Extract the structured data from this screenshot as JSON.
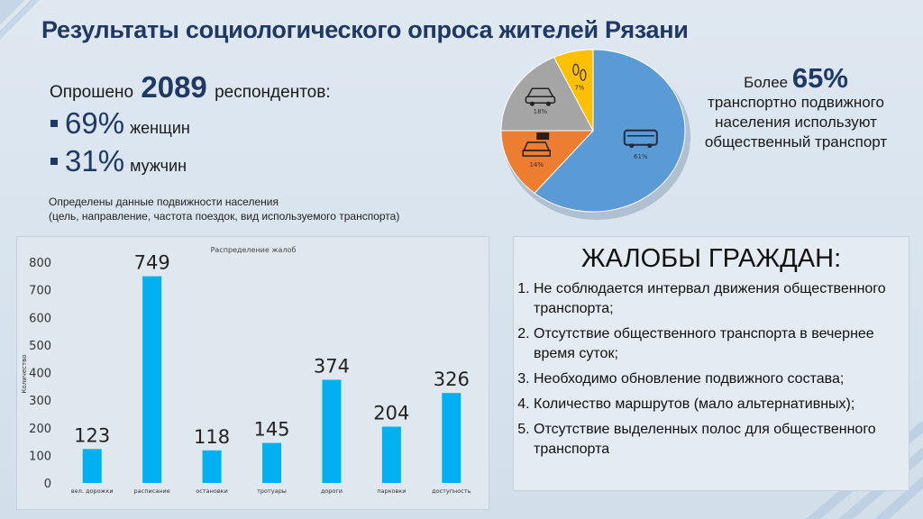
{
  "title": "Результаты социологического опроса жителей Рязани",
  "survey": {
    "prefix": "Опрошено",
    "count": "2089",
    "suffix": "респондентов:",
    "women_pct": "69%",
    "women_label": "женщин",
    "men_pct": "31%",
    "men_label": "мужчин",
    "mobility_line1": "Определены данные подвижности населения",
    "mobility_line2": "(цель, направление, частота поездок, вид используемого транспорта)"
  },
  "transport_share": {
    "prefix": "Более",
    "big": "65%",
    "text": "транспортно подвижного населения используют общественный транспорт",
    "slices": [
      {
        "label": "61%",
        "value": 61,
        "icon": "bus-icon",
        "color": "#5b9bd5"
      },
      {
        "label": "14%",
        "value": 14,
        "icon": "taxi-icon",
        "color": "#ed7d31"
      },
      {
        "label": "18%",
        "value": 18,
        "icon": "car-icon",
        "color": "#a5a5a5"
      },
      {
        "label": "7%",
        "value": 7,
        "icon": "footprints-icon",
        "color": "#ffc000"
      }
    ]
  },
  "chart_data": {
    "type": "bar",
    "title": "Распределение жалоб",
    "ylabel": "Количество",
    "xlabel": "",
    "ylim": [
      0,
      800
    ],
    "yticks": [
      0,
      100,
      200,
      300,
      400,
      500,
      600,
      700,
      800
    ],
    "categories": [
      "вел. дорожки",
      "расписание",
      "остановки",
      "тротуары",
      "дороги",
      "парковки",
      "доступность"
    ],
    "values": [
      123,
      749,
      118,
      145,
      374,
      204,
      326
    ],
    "bar_color": "#00b0f0"
  },
  "complaints": {
    "heading": "ЖАЛОБЫ ГРАЖДАН:",
    "items": [
      "Не соблюдается интервал движения общественного транспорта;",
      "Отсутствие общественного транспорта в вечернее время суток;",
      "Необходимо обновление подвижного состава;",
      "Количество маршрутов (мало альтернативных);",
      "Отсутствие выделенных полос для общественного транспорта"
    ]
  }
}
